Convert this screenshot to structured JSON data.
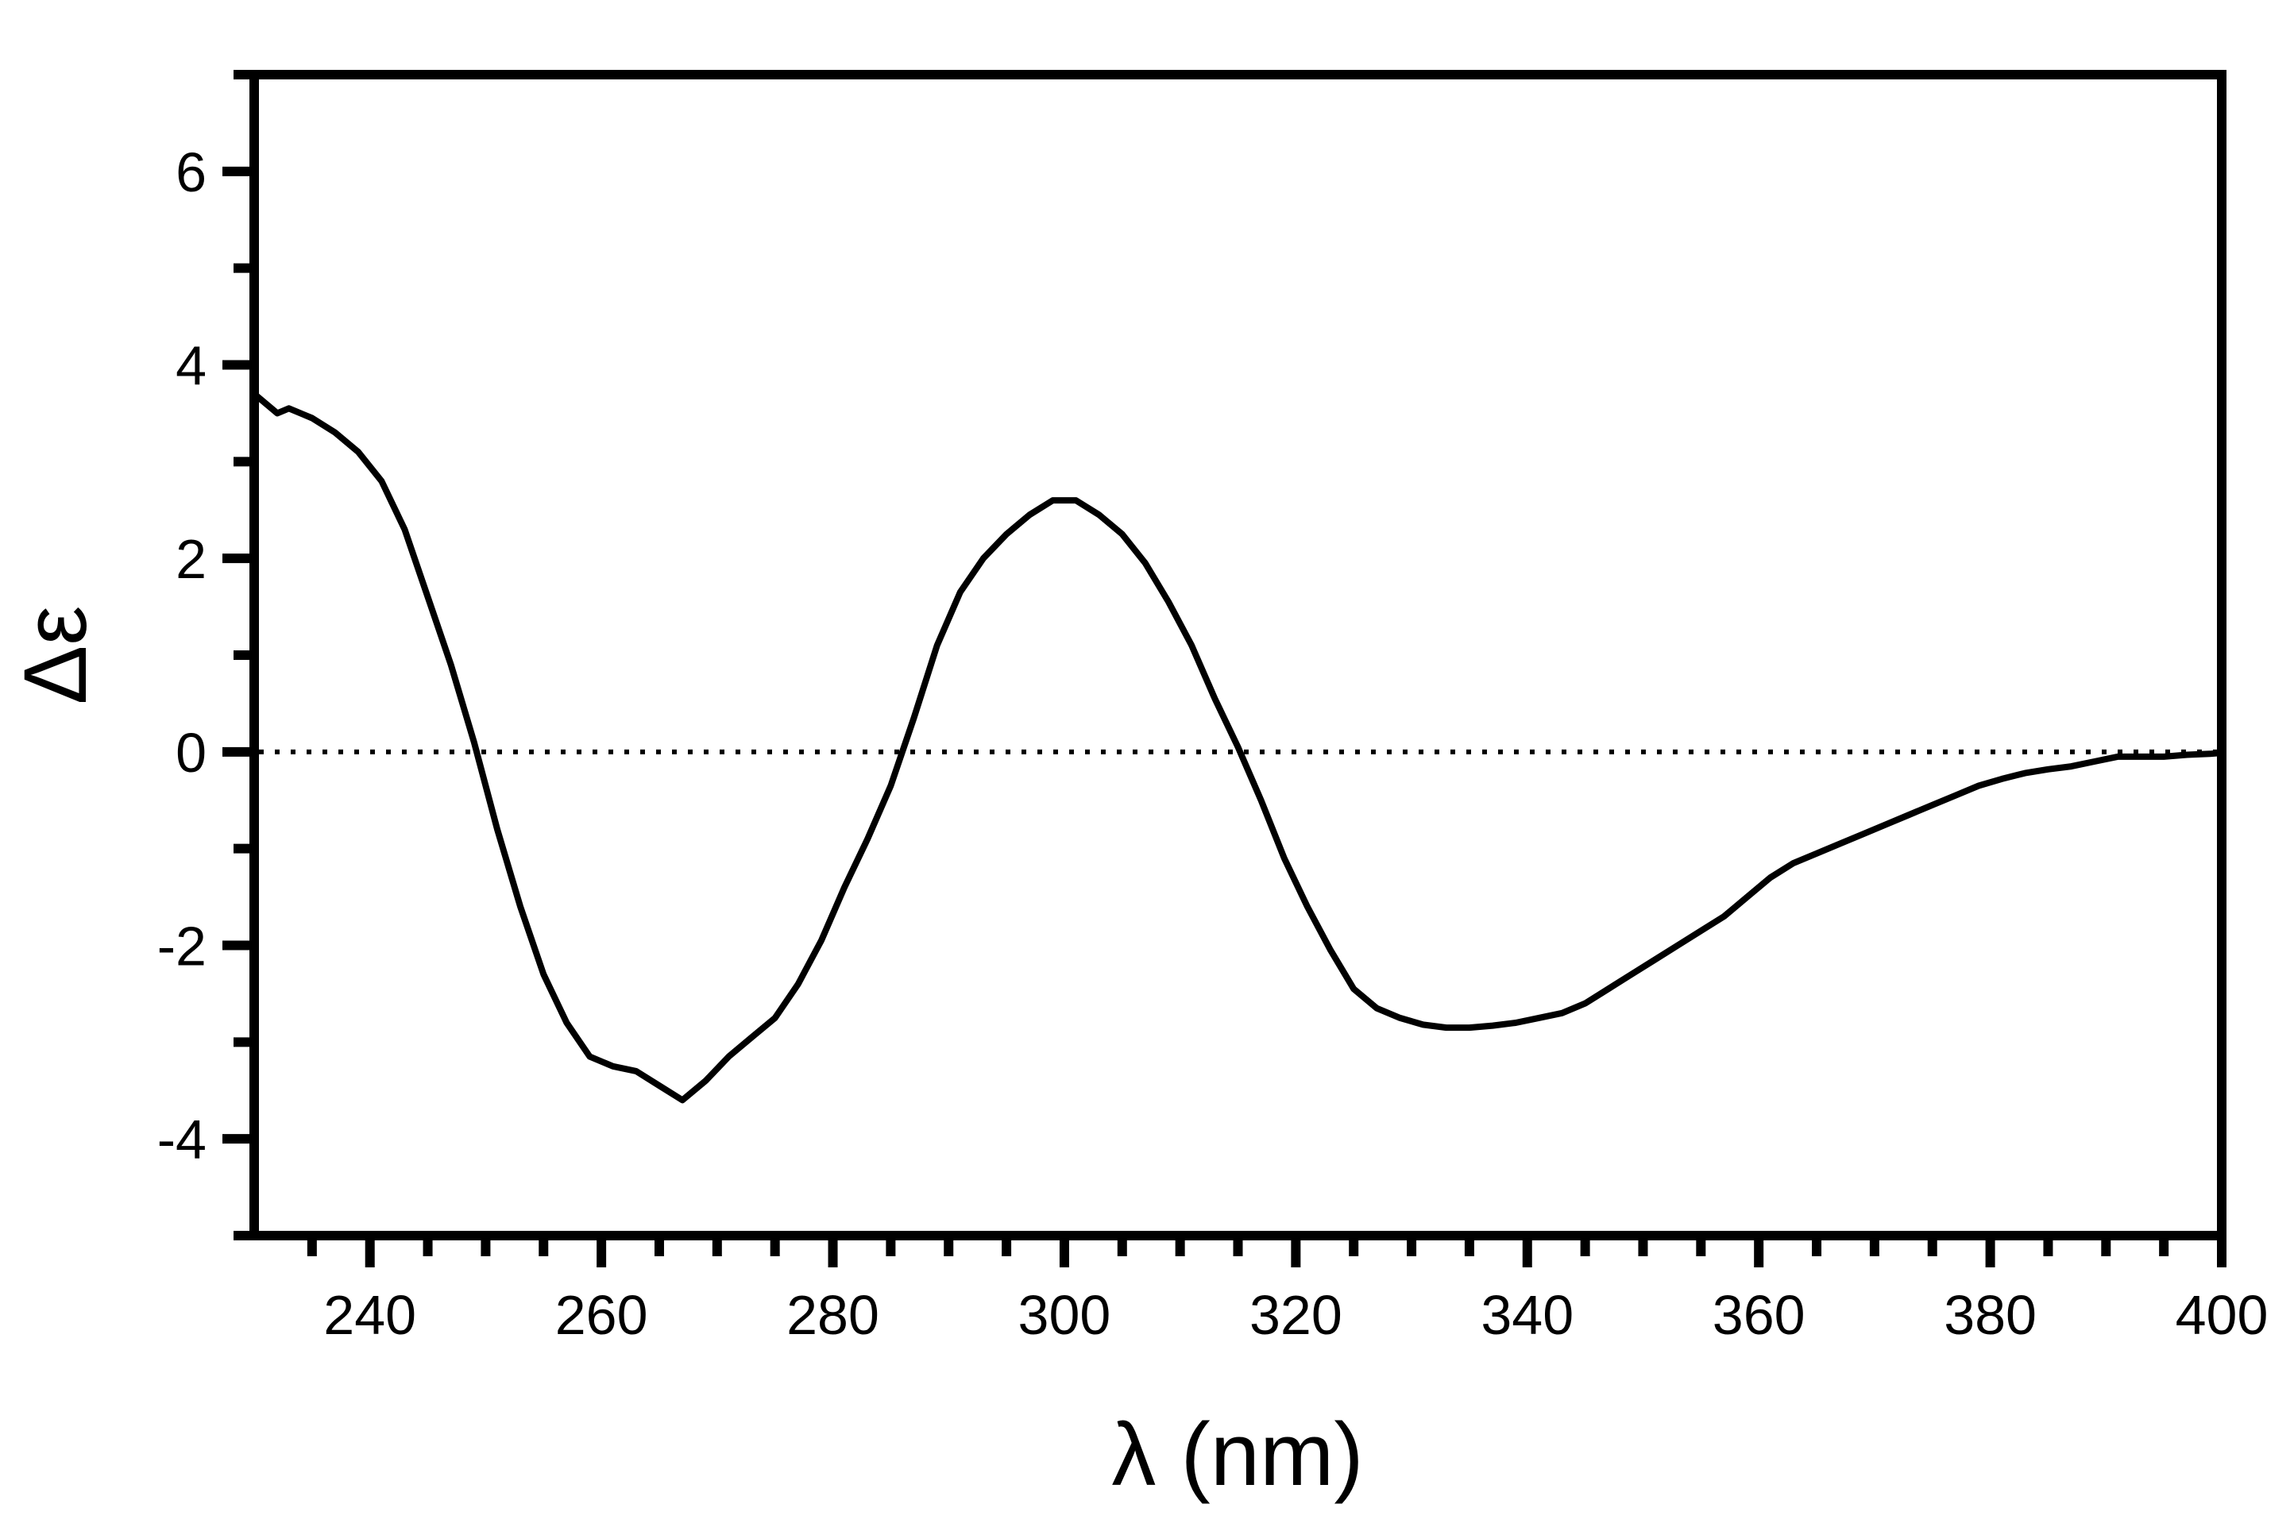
{
  "chart_data": {
    "type": "line",
    "xlabel": "λ (nm)",
    "ylabel": "Δε",
    "xlim": [
      230,
      400
    ],
    "ylim": [
      -5,
      7
    ],
    "x_ticks": [
      240,
      260,
      280,
      300,
      320,
      340,
      360,
      380,
      400
    ],
    "x_tick_labels": [
      "240",
      "260",
      "280",
      "300",
      "320",
      "340",
      "360",
      "380",
      "400"
    ],
    "y_ticks": [
      -4,
      -2,
      0,
      2,
      4,
      6
    ],
    "y_tick_labels": [
      "-4",
      "-2",
      "0",
      "2",
      "4",
      "6"
    ],
    "grid": false,
    "reference_line": {
      "y": 0,
      "style": "dotted"
    },
    "colors": {
      "line": "#000000",
      "axes": "#000000",
      "background": "#ffffff"
    },
    "series": [
      {
        "x": [
          230,
          232,
          233,
          235,
          237,
          239,
          241,
          243,
          245,
          247,
          249,
          251,
          253,
          255,
          257,
          259,
          261,
          263,
          265,
          267,
          269,
          271,
          273,
          275,
          277,
          279,
          281,
          283,
          285,
          287,
          289,
          291,
          293,
          295,
          297,
          299,
          301,
          303,
          305,
          307,
          309,
          311,
          313,
          315,
          317,
          319,
          321,
          323,
          325,
          327,
          329,
          331,
          333,
          335,
          337,
          339,
          341,
          343,
          345,
          347,
          349,
          351,
          353,
          355,
          357,
          359,
          361,
          363,
          365,
          367,
          369,
          371,
          373,
          375,
          377,
          379,
          381,
          383,
          385,
          387,
          389,
          391,
          393,
          395,
          397,
          399,
          400
        ],
        "y": [
          3.7,
          3.5,
          3.55,
          3.45,
          3.3,
          3.1,
          2.8,
          2.3,
          1.6,
          0.9,
          0.1,
          -0.8,
          -1.6,
          -2.3,
          -2.8,
          -3.15,
          -3.25,
          -3.3,
          -3.45,
          -3.6,
          -3.4,
          -3.15,
          -2.95,
          -2.75,
          -2.4,
          -1.95,
          -1.4,
          -0.9,
          -0.35,
          0.35,
          1.1,
          1.65,
          2.0,
          2.25,
          2.45,
          2.6,
          2.6,
          2.45,
          2.25,
          1.95,
          1.55,
          1.1,
          0.55,
          0.05,
          -0.5,
          -1.1,
          -1.6,
          -2.05,
          -2.45,
          -2.65,
          -2.75,
          -2.82,
          -2.85,
          -2.85,
          -2.83,
          -2.8,
          -2.75,
          -2.7,
          -2.6,
          -2.45,
          -2.3,
          -2.15,
          -2.0,
          -1.85,
          -1.7,
          -1.5,
          -1.3,
          -1.15,
          -1.05,
          -0.95,
          -0.85,
          -0.75,
          -0.65,
          -0.55,
          -0.45,
          -0.35,
          -0.28,
          -0.22,
          -0.18,
          -0.15,
          -0.1,
          -0.05,
          -0.05,
          -0.05,
          -0.03,
          -0.02,
          -0.01
        ]
      }
    ]
  }
}
